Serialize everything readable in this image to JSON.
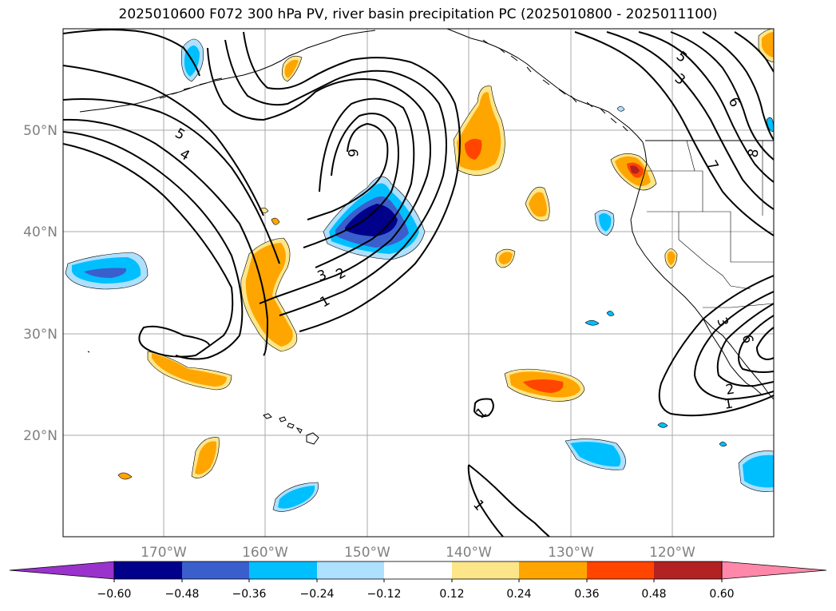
{
  "title": "2025010600 F072 300 hPa PV, river basin precipitation PC (2025010800 - 2025011100)",
  "map": {
    "lat_labels": [
      "50°N",
      "40°N",
      "30°N",
      "20°N"
    ],
    "lon_labels": [
      "170°W",
      "160°W",
      "150°W",
      "140°W",
      "130°W",
      "120°W"
    ],
    "contour_labels": [
      "5",
      "4",
      "6",
      "3",
      "2",
      "1",
      "5",
      "3",
      "6",
      "7",
      "8",
      "1",
      "2",
      "6",
      "3",
      "1",
      "1"
    ],
    "colors": {
      "neg_060": "#9933cc",
      "neg_048": "#00008b",
      "neg_036": "#3a5fcd",
      "neg_024": "#00bfff",
      "neg_012": "#aee0ff",
      "neutral": "#ffffff",
      "pos_012": "#fde68a",
      "pos_024": "#ffa500",
      "pos_036": "#ff4500",
      "pos_048": "#b22222",
      "pos_060": "#ff88aa"
    }
  },
  "colorbar": {
    "ticks": [
      "−0.60",
      "−0.48",
      "−0.36",
      "−0.24",
      "−0.12",
      "0.12",
      "0.24",
      "0.36",
      "0.48",
      "0.60"
    ],
    "colors": [
      "#9933cc",
      "#00008b",
      "#3a5fcd",
      "#00bfff",
      "#aee0ff",
      "#ffffff",
      "#fde68a",
      "#ffa500",
      "#ff4500",
      "#b22222",
      "#ff88aa"
    ]
  }
}
